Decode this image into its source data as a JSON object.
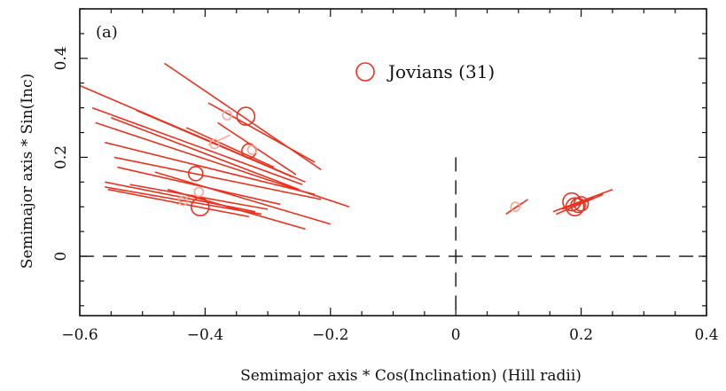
{
  "chart_data": {
    "type": "scatter",
    "panel_label": "(a)",
    "xlabel": "Semimajor axis * Cos(Inclination) (Hill radii)",
    "ylabel": "Semimajor axis * Sin(Inc)",
    "xlim": [
      -0.6,
      0.4
    ],
    "ylim": [
      -0.12,
      0.5
    ],
    "x_ticks": [
      -0.6,
      -0.4,
      -0.2,
      0,
      0.2,
      0.4
    ],
    "x_tick_labels": [
      "−0.6",
      "−0.4",
      "−0.2",
      "0",
      "0.2",
      "0.4"
    ],
    "y_ticks": [
      0,
      0.2,
      0.4
    ],
    "y_tick_labels": [
      "0",
      "0.2",
      "0.4"
    ],
    "reference_lines": [
      {
        "orientation": "horizontal",
        "value": 0,
        "style": "dashed"
      },
      {
        "orientation": "vertical",
        "value": 0,
        "style": "dashed"
      }
    ],
    "legend": {
      "label": "Jovians (31)",
      "marker": "open-circle",
      "placement": "top-center"
    },
    "colors": {
      "series": "#e8321e",
      "faint": "#f4a89a",
      "axes": "#111111"
    },
    "series": [
      {
        "name": "Jovians (31)",
        "markers": [
          {
            "x": -0.335,
            "y": 0.283,
            "size": 3
          },
          {
            "x": -0.365,
            "y": 0.285,
            "size": 1
          },
          {
            "x": -0.33,
            "y": 0.213,
            "size": 2
          },
          {
            "x": -0.385,
            "y": 0.227,
            "size": 1
          },
          {
            "x": -0.325,
            "y": 0.215,
            "size": 1
          },
          {
            "x": -0.415,
            "y": 0.167,
            "size": 2
          },
          {
            "x": -0.408,
            "y": 0.1,
            "size": 3
          },
          {
            "x": -0.435,
            "y": 0.112,
            "size": 1
          },
          {
            "x": -0.41,
            "y": 0.13,
            "size": 1
          },
          {
            "x": 0.095,
            "y": 0.1,
            "size": 1
          },
          {
            "x": 0.185,
            "y": 0.11,
            "size": 3
          },
          {
            "x": 0.19,
            "y": 0.1,
            "size": 3
          },
          {
            "x": 0.195,
            "y": 0.103,
            "size": 2
          },
          {
            "x": 0.2,
            "y": 0.106,
            "size": 2
          }
        ],
        "segments": [
          {
            "x1": -0.465,
            "y1": 0.39,
            "x2": -0.215,
            "y2": 0.175
          },
          {
            "x1": -0.395,
            "y1": 0.31,
            "x2": -0.225,
            "y2": 0.19
          },
          {
            "x1": -0.6,
            "y1": 0.345,
            "x2": -0.24,
            "y2": 0.15
          },
          {
            "x1": -0.58,
            "y1": 0.3,
            "x2": -0.245,
            "y2": 0.145
          },
          {
            "x1": -0.55,
            "y1": 0.28,
            "x2": -0.25,
            "y2": 0.135
          },
          {
            "x1": -0.51,
            "y1": 0.295,
            "x2": -0.26,
            "y2": 0.16
          },
          {
            "x1": -0.575,
            "y1": 0.27,
            "x2": -0.17,
            "y2": 0.1
          },
          {
            "x1": -0.56,
            "y1": 0.23,
            "x2": -0.225,
            "y2": 0.125
          },
          {
            "x1": -0.545,
            "y1": 0.2,
            "x2": -0.215,
            "y2": 0.115
          },
          {
            "x1": -0.54,
            "y1": 0.18,
            "x2": -0.28,
            "y2": 0.105
          },
          {
            "x1": -0.43,
            "y1": 0.26,
            "x2": -0.29,
            "y2": 0.18
          },
          {
            "x1": -0.38,
            "y1": 0.27,
            "x2": -0.255,
            "y2": 0.165
          },
          {
            "x1": -0.52,
            "y1": 0.145,
            "x2": -0.3,
            "y2": 0.095
          },
          {
            "x1": -0.56,
            "y1": 0.15,
            "x2": -0.32,
            "y2": 0.09
          },
          {
            "x1": -0.56,
            "y1": 0.14,
            "x2": -0.31,
            "y2": 0.085
          },
          {
            "x1": -0.555,
            "y1": 0.135,
            "x2": -0.33,
            "y2": 0.08
          },
          {
            "x1": -0.48,
            "y1": 0.17,
            "x2": -0.2,
            "y2": 0.065
          },
          {
            "x1": -0.46,
            "y1": 0.135,
            "x2": -0.24,
            "y2": 0.055
          },
          {
            "x1": 0.08,
            "y1": 0.085,
            "x2": 0.115,
            "y2": 0.115
          },
          {
            "x1": 0.155,
            "y1": 0.09,
            "x2": 0.25,
            "y2": 0.135
          },
          {
            "x1": 0.16,
            "y1": 0.085,
            "x2": 0.235,
            "y2": 0.125
          },
          {
            "x1": 0.17,
            "y1": 0.095,
            "x2": 0.22,
            "y2": 0.118
          }
        ],
        "faint_segments": [
          {
            "x1": -0.445,
            "y1": 0.105,
            "x2": -0.42,
            "y2": 0.125
          },
          {
            "x1": -0.395,
            "y1": 0.225,
            "x2": -0.36,
            "y2": 0.245
          },
          {
            "x1": 0.085,
            "y1": 0.09,
            "x2": 0.105,
            "y2": 0.108
          }
        ]
      }
    ]
  }
}
